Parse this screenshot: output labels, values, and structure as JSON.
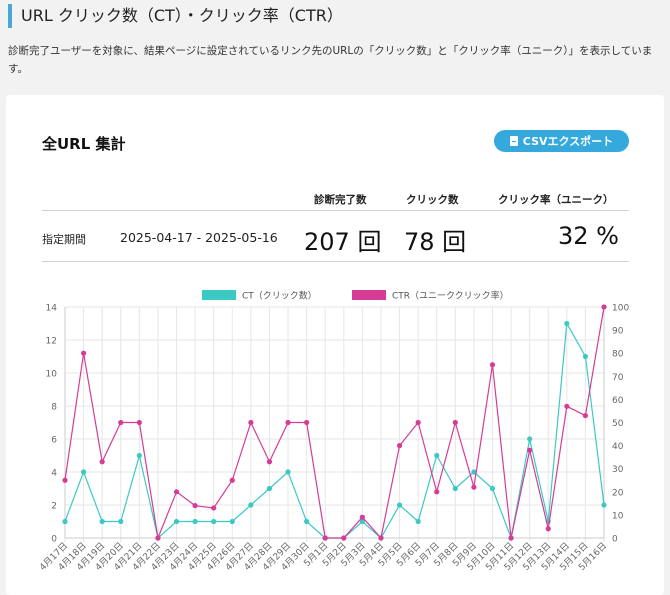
{
  "header": {
    "title": "URL クリック数（CT）・クリック率（CTR）"
  },
  "description": "診断完了ユーザーを対象に、結果ページに設定されているリンク先のURLの「クリック数」と「クリック率（ユニーク）」を表示しています。",
  "card": {
    "title": "全URL 集計",
    "csv_button": "CSVエクスポート"
  },
  "stats": {
    "headers": {
      "completed": "診断完了数",
      "clicks": "クリック数",
      "ctr": "クリック率（ユニーク）"
    },
    "period_label": "指定期間",
    "period_value": "2025-04-17 - 2025-05-16",
    "completed": "207 回",
    "clicks": "78 回",
    "ctr": "32 %"
  },
  "colors": {
    "ct": "#3cc9c4",
    "ctr": "#d63c96",
    "accent": "#36a9dc"
  },
  "chart_data": {
    "type": "line",
    "x": [
      "4月17日",
      "4月18日",
      "4月19日",
      "4月20日",
      "4月21日",
      "4月22日",
      "4月23日",
      "4月24日",
      "4月25日",
      "4月26日",
      "4月27日",
      "4月28日",
      "4月29日",
      "4月30日",
      "5月1日",
      "5月2日",
      "5月3日",
      "5月4日",
      "5月5日",
      "5月6日",
      "5月7日",
      "5月8日",
      "5月9日",
      "5月10日",
      "5月11日",
      "5月12日",
      "5月13日",
      "5月14日",
      "5月15日",
      "5月16日"
    ],
    "series": [
      {
        "name": "CT（クリック数）",
        "axis": "left",
        "values": [
          1,
          4,
          1,
          1,
          5,
          0,
          1,
          1,
          1,
          1,
          2,
          3,
          4,
          1,
          0,
          0,
          1,
          0,
          2,
          1,
          5,
          3,
          4,
          3,
          0,
          6,
          1,
          13,
          11,
          2
        ]
      },
      {
        "name": "CTR（ユニーククリック率）",
        "axis": "right",
        "values": [
          25,
          80,
          33,
          50,
          50,
          0,
          20,
          14,
          13,
          25,
          50,
          33,
          50,
          50,
          0,
          0,
          9,
          0,
          40,
          50,
          20,
          50,
          22,
          75,
          0,
          38,
          4,
          57,
          53,
          100
        ]
      }
    ],
    "ylim_left": [
      0,
      14
    ],
    "ylim_right": [
      0,
      100
    ],
    "yticks_left": [
      0,
      2,
      4,
      6,
      8,
      10,
      12,
      14
    ],
    "yticks_right": [
      0,
      10,
      20,
      30,
      40,
      50,
      60,
      70,
      80,
      90,
      100
    ],
    "grid": true,
    "legend": "top-center"
  }
}
